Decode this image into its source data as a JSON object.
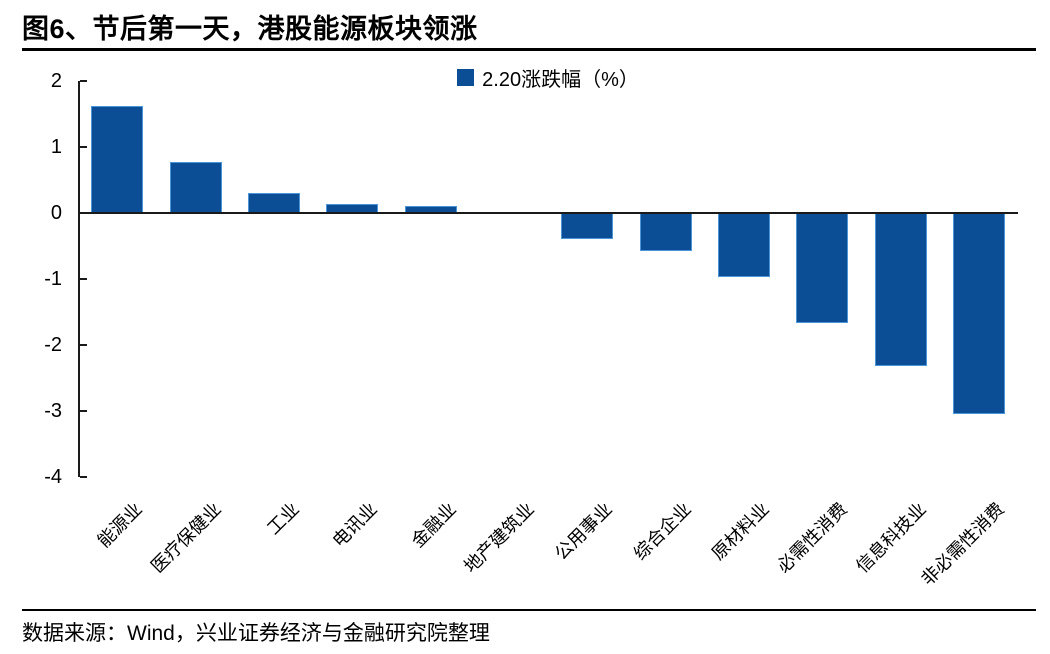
{
  "figure": {
    "title": "图6、节后第一天，港股能源板块领涨",
    "source_note": "数据来源：Wind，兴业证券经济与金融研究院整理"
  },
  "chart_data": {
    "type": "bar",
    "title": "图6、节后第一天，港股能源板块领涨",
    "legend": [
      "2.20涨跌幅（%）"
    ],
    "legend_position": "top-center",
    "categories": [
      "能源业",
      "医疗保健业",
      "工业",
      "电讯业",
      "金融业",
      "地产建筑业",
      "公用事业",
      "综合企业",
      "原材料业",
      "必需性消费",
      "信息科技业",
      "非必需性消费"
    ],
    "values": [
      1.62,
      0.78,
      0.3,
      0.14,
      0.11,
      0.02,
      -0.4,
      -0.58,
      -0.97,
      -1.66,
      -2.32,
      -3.05
    ],
    "xlabel": "",
    "ylabel": "",
    "ylim": [
      -4,
      2
    ],
    "yticks": [
      2,
      1,
      0,
      -1,
      -2,
      -3,
      -4
    ],
    "grid": false,
    "x_label_rotation": -45,
    "bar_color": "#0B4E95",
    "bar_border_color": "#4C96D7",
    "axis_color": "#1a1a1a"
  }
}
